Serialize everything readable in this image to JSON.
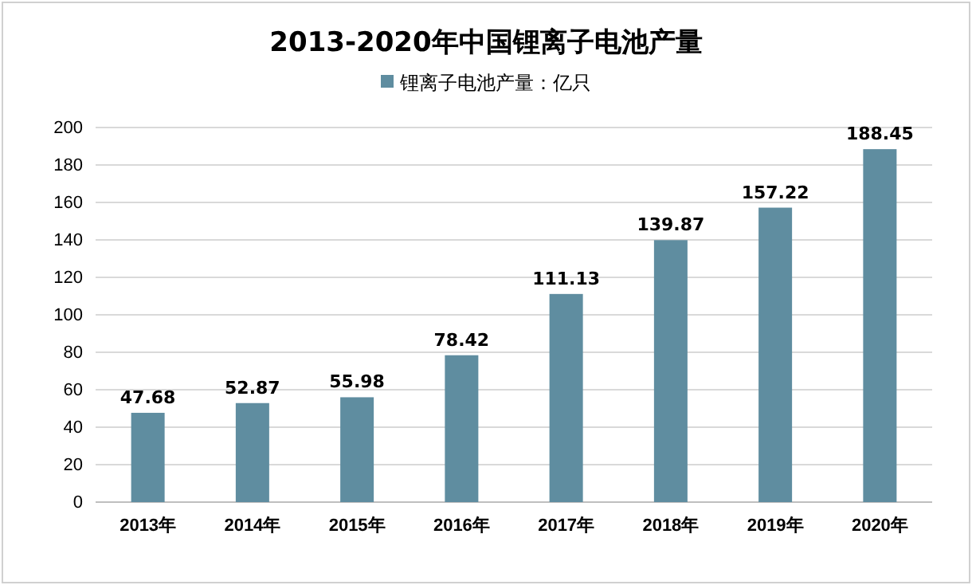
{
  "chart_data": {
    "type": "bar",
    "title": "2013-2020年中国锂离子电池产量",
    "categories": [
      "2013年",
      "2014年",
      "2015年",
      "2016年",
      "2017年",
      "2018年",
      "2019年",
      "2020年"
    ],
    "series": [
      {
        "name": "锂离子电池产量：亿只",
        "color": "#5f8da0",
        "values": [
          47.68,
          52.87,
          55.98,
          78.42,
          111.13,
          139.87,
          157.22,
          188.45
        ]
      }
    ],
    "ylim": [
      0,
      200
    ],
    "yticks": [
      0,
      20,
      40,
      60,
      80,
      100,
      120,
      140,
      160,
      180,
      200
    ],
    "grid": "y",
    "legend": "top",
    "data_labels": true
  }
}
